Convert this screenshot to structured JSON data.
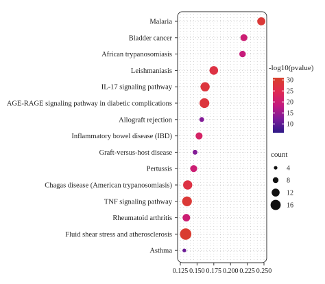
{
  "chart_data": {
    "type": "scatter",
    "title": "",
    "xlabel": "",
    "ylabel": "",
    "xlim": [
      0.125,
      0.25
    ],
    "xticks": [
      0.125,
      0.15,
      0.175,
      0.2,
      0.225,
      0.25
    ],
    "xtick_labels": [
      "0.125",
      "0.150",
      "0.175",
      "0.200",
      "0.225",
      "0.250"
    ],
    "grid": true,
    "categories": [
      "Malaria",
      "Bladder cancer",
      "African trypanosomiasis",
      "Leishmaniasis",
      "IL-17 signaling pathway",
      "AGE-RAGE signaling pathway in diabetic complications",
      "Allograft rejection",
      "Inflammatory bowel disease (IBD)",
      "Graft-versus-host disease",
      "Pertussis",
      "Chagas disease (American trypanosomiasis)",
      "TNF signaling pathway",
      "Rheumatoid arthritis",
      "Fluid shear stress and atherosclerosis",
      "Asthma"
    ],
    "x": [
      0.246,
      0.22,
      0.218,
      0.175,
      0.162,
      0.161,
      0.157,
      0.153,
      0.147,
      0.145,
      0.136,
      0.135,
      0.134,
      0.133,
      0.131
    ],
    "count": [
      11,
      9,
      8,
      12,
      13,
      14,
      5,
      9,
      5,
      9,
      13,
      14,
      10,
      17,
      3
    ],
    "neg_log10_pvalue": [
      29,
      20,
      19,
      27,
      28,
      28,
      13,
      22,
      13,
      20,
      27,
      29,
      20,
      30,
      11
    ],
    "color_legend": {
      "title": "-log10(pvalue)",
      "min": 6,
      "max": 31,
      "ticks": [
        10,
        15,
        20,
        25,
        30
      ],
      "colors": [
        "#2e1a87",
        "#7a1c9a",
        "#c41a7e",
        "#e02a52",
        "#d8402a"
      ]
    },
    "size_legend": {
      "title": "count",
      "values": [
        4,
        8,
        12,
        16
      ]
    },
    "legend_position": "right"
  }
}
